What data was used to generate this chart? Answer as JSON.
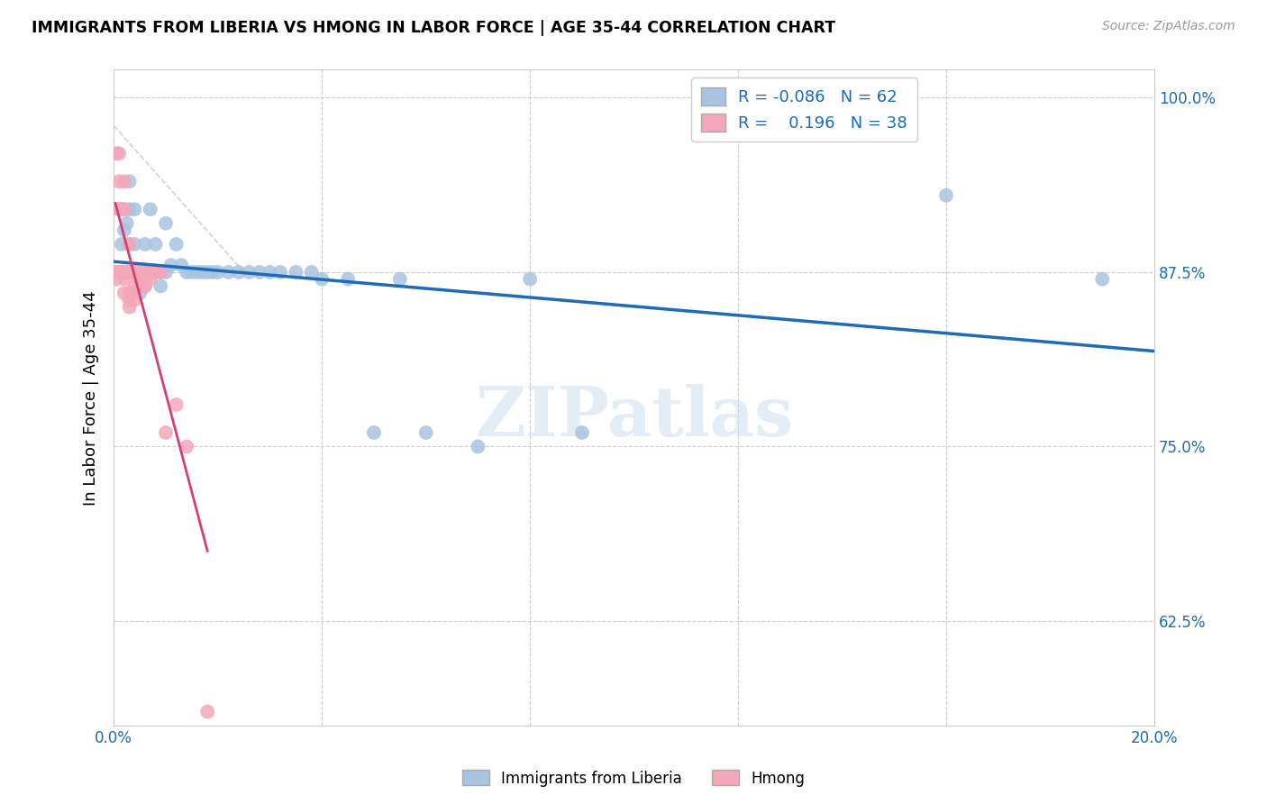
{
  "title": "IMMIGRANTS FROM LIBERIA VS HMONG IN LABOR FORCE | AGE 35-44 CORRELATION CHART",
  "source": "Source: ZipAtlas.com",
  "ylabel": "In Labor Force | Age 35-44",
  "xlim": [
    0.0,
    0.2
  ],
  "ylim": [
    0.55,
    1.02
  ],
  "yticks": [
    0.625,
    0.75,
    0.875,
    1.0
  ],
  "ytick_labels": [
    "62.5%",
    "75.0%",
    "87.5%",
    "100.0%"
  ],
  "xticks": [
    0.0,
    0.04,
    0.08,
    0.12,
    0.16,
    0.2
  ],
  "xtick_labels": [
    "0.0%",
    "",
    "",
    "",
    "",
    "20.0%"
  ],
  "liberia_color": "#a8c4e0",
  "hmong_color": "#f4a7b9",
  "trend_liberia_color": "#1e6bb8",
  "trend_hmong_color": "#d44070",
  "diag_line_color": "#cccccc",
  "legend_R_liberia": "-0.086",
  "legend_N_liberia": "62",
  "legend_R_hmong": "0.196",
  "legend_N_hmong": "38",
  "watermark": "ZIPatlas",
  "liberia_x": [
    0.0005,
    0.001,
    0.001,
    0.0015,
    0.0015,
    0.002,
    0.002,
    0.002,
    0.0025,
    0.0025,
    0.003,
    0.003,
    0.003,
    0.003,
    0.0035,
    0.0035,
    0.004,
    0.004,
    0.004,
    0.0045,
    0.005,
    0.005,
    0.005,
    0.006,
    0.006,
    0.006,
    0.007,
    0.007,
    0.008,
    0.008,
    0.009,
    0.009,
    0.01,
    0.01,
    0.011,
    0.012,
    0.013,
    0.014,
    0.015,
    0.016,
    0.017,
    0.018,
    0.019,
    0.02,
    0.022,
    0.024,
    0.026,
    0.028,
    0.03,
    0.032,
    0.035,
    0.038,
    0.04,
    0.045,
    0.05,
    0.055,
    0.06,
    0.07,
    0.08,
    0.09,
    0.16,
    0.19
  ],
  "liberia_y": [
    0.875,
    0.875,
    0.92,
    0.875,
    0.895,
    0.92,
    0.905,
    0.875,
    0.91,
    0.875,
    0.94,
    0.92,
    0.895,
    0.875,
    0.875,
    0.86,
    0.92,
    0.895,
    0.875,
    0.875,
    0.875,
    0.87,
    0.86,
    0.895,
    0.875,
    0.865,
    0.92,
    0.875,
    0.895,
    0.875,
    0.875,
    0.865,
    0.91,
    0.875,
    0.88,
    0.895,
    0.88,
    0.875,
    0.875,
    0.875,
    0.875,
    0.875,
    0.875,
    0.875,
    0.875,
    0.875,
    0.875,
    0.875,
    0.875,
    0.875,
    0.875,
    0.875,
    0.87,
    0.87,
    0.76,
    0.87,
    0.76,
    0.75,
    0.87,
    0.76,
    0.93,
    0.87
  ],
  "hmong_x": [
    0.0003,
    0.0005,
    0.0005,
    0.001,
    0.001,
    0.001,
    0.001,
    0.0015,
    0.0015,
    0.002,
    0.002,
    0.002,
    0.002,
    0.002,
    0.0025,
    0.003,
    0.003,
    0.003,
    0.003,
    0.003,
    0.003,
    0.004,
    0.004,
    0.004,
    0.005,
    0.005,
    0.005,
    0.006,
    0.006,
    0.006,
    0.007,
    0.007,
    0.008,
    0.009,
    0.01,
    0.012,
    0.014,
    0.018
  ],
  "hmong_y": [
    0.875,
    0.96,
    0.87,
    0.96,
    0.94,
    0.92,
    0.875,
    0.92,
    0.875,
    0.94,
    0.92,
    0.875,
    0.87,
    0.86,
    0.875,
    0.895,
    0.875,
    0.875,
    0.86,
    0.855,
    0.85,
    0.875,
    0.865,
    0.855,
    0.875,
    0.875,
    0.865,
    0.875,
    0.87,
    0.865,
    0.875,
    0.87,
    0.875,
    0.875,
    0.76,
    0.78,
    0.75,
    0.56
  ]
}
